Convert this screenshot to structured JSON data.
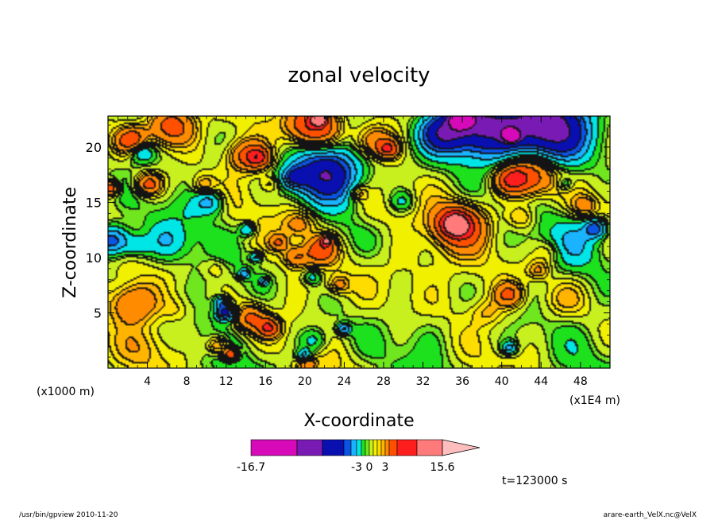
{
  "chart_data": {
    "type": "heatmap",
    "title": "zonal velocity",
    "xlabel": "X-coordinate",
    "ylabel": "Z-coordinate",
    "x_unit_label": "(x1E4 m)",
    "y_unit_label": "(x1000 m)",
    "x_ticks": [
      4,
      8,
      12,
      16,
      20,
      24,
      28,
      32,
      36,
      40,
      44,
      48
    ],
    "y_ticks": [
      5,
      10,
      15,
      20
    ],
    "xlim": [
      0,
      51
    ],
    "ylim": [
      0,
      22.8
    ],
    "colorbar": {
      "levels": [
        -16.7,
        -12,
        -9,
        -6,
        -4.5,
        -3,
        -1.5,
        -0.5,
        0,
        0.75,
        1.5,
        2.25,
        3,
        5,
        8,
        11,
        15.6
      ],
      "colors": [
        "#d60ab8",
        "#7a1ab4",
        "#0a10b0",
        "#0a55e6",
        "#19b3ff",
        "#00e6e6",
        "#1ee11e",
        "#6fe61e",
        "#c8f01e",
        "#f0f000",
        "#ffdc00",
        "#ffb400",
        "#ff8c00",
        "#ff5000",
        "#ff1e1e",
        "#ff7a7a",
        "#ffbebe"
      ],
      "tick_labels": [
        "-16.7",
        "-3",
        "0",
        "3",
        "15.6"
      ],
      "tick_values": [
        -16.7,
        -3,
        0,
        3,
        15.6
      ]
    },
    "field_sketch": {
      "background_value": 0.3,
      "features": [
        {
          "x": 2.5,
          "z": 20.5,
          "r": 1.5,
          "v": 7
        },
        {
          "x": 6.5,
          "z": 21.8,
          "r": 2.4,
          "v": 7
        },
        {
          "x": 3.4,
          "z": 19.6,
          "r": 1.3,
          "v": -5
        },
        {
          "x": 0.3,
          "z": 16.2,
          "r": 0.8,
          "v": 7
        },
        {
          "x": 4.2,
          "z": 16.6,
          "r": 1.3,
          "v": 6
        },
        {
          "x": 9.8,
          "z": 16.5,
          "r": 1.1,
          "v": 3
        },
        {
          "x": 10.4,
          "z": 15.0,
          "r": 1.5,
          "v": -4
        },
        {
          "x": 14.0,
          "z": 19.2,
          "r": 1.9,
          "v": 5
        },
        {
          "x": 15.3,
          "z": 19.0,
          "r": 1.2,
          "v": 7
        },
        {
          "x": 16.5,
          "z": 16.6,
          "r": 1.0,
          "v": 2
        },
        {
          "x": 21.0,
          "z": 22.0,
          "r": 2.5,
          "v": 9
        },
        {
          "x": 21.5,
          "z": 22.5,
          "r": 0.7,
          "v": 14
        },
        {
          "x": 22.2,
          "z": 17.6,
          "r": 3.2,
          "v": -9
        },
        {
          "x": 19.0,
          "z": 17.2,
          "r": 1.3,
          "v": -5
        },
        {
          "x": 27.0,
          "z": 20.5,
          "r": 2.0,
          "v": 5
        },
        {
          "x": 28.5,
          "z": 19.8,
          "r": 1.0,
          "v": 7
        },
        {
          "x": 34.0,
          "z": 21.3,
          "r": 2.5,
          "v": -8
        },
        {
          "x": 38.0,
          "z": 21.6,
          "r": 3.6,
          "v": -9
        },
        {
          "x": 45.0,
          "z": 21.8,
          "r": 4.2,
          "v": -11
        },
        {
          "x": 36.0,
          "z": 22.6,
          "r": 1.2,
          "v": -13
        },
        {
          "x": 41.0,
          "z": 21.0,
          "r": 0.8,
          "v": -13
        },
        {
          "x": 43.0,
          "z": 17.4,
          "r": 2.6,
          "v": 7
        },
        {
          "x": 41.0,
          "z": 17.0,
          "r": 1.6,
          "v": 7
        },
        {
          "x": 46.5,
          "z": 16.6,
          "r": 0.8,
          "v": -2.5
        },
        {
          "x": 36.0,
          "z": 12.8,
          "r": 2.6,
          "v": 6
        },
        {
          "x": 35.3,
          "z": 13.0,
          "r": 1.5,
          "v": 10
        },
        {
          "x": 42.0,
          "z": 13.6,
          "r": 1.5,
          "v": 3
        },
        {
          "x": 48.5,
          "z": 14.6,
          "r": 1.3,
          "v": 3
        },
        {
          "x": 49.6,
          "z": 12.6,
          "r": 1.2,
          "v": -6
        },
        {
          "x": 47.5,
          "z": 11.3,
          "r": 2.8,
          "v": -2.5
        },
        {
          "x": 45.0,
          "z": 10.5,
          "r": 1.5,
          "v": 2
        },
        {
          "x": 43.8,
          "z": 8.8,
          "r": 1.2,
          "v": 3
        },
        {
          "x": 46.5,
          "z": 6.2,
          "r": 2.2,
          "v": 2
        },
        {
          "x": 40.8,
          "z": 6.6,
          "r": 1.4,
          "v": 5
        },
        {
          "x": 38.5,
          "z": 5.0,
          "r": 1.6,
          "v": 2
        },
        {
          "x": 40.8,
          "z": 1.8,
          "r": 0.8,
          "v": -4
        },
        {
          "x": 33.0,
          "z": 3.5,
          "r": 2.5,
          "v": -0.5
        },
        {
          "x": 37.5,
          "z": 2.2,
          "r": 2.5,
          "v": -0.3
        },
        {
          "x": 0.5,
          "z": 11.5,
          "r": 1.9,
          "v": -7
        },
        {
          "x": 6.0,
          "z": 11.4,
          "r": 2.2,
          "v": -2.5
        },
        {
          "x": 3.0,
          "z": 11.0,
          "r": 1.4,
          "v": -2.5
        },
        {
          "x": 2.6,
          "z": 5.8,
          "r": 2.4,
          "v": 5
        },
        {
          "x": 7.0,
          "z": 5.2,
          "r": 1.6,
          "v": 1.5
        },
        {
          "x": 4.0,
          "z": 2.0,
          "r": 2.5,
          "v": 1.5
        },
        {
          "x": 11.0,
          "z": 9.0,
          "r": 1.2,
          "v": 1.5
        },
        {
          "x": 12.0,
          "z": 5.0,
          "r": 1.0,
          "v": -8
        },
        {
          "x": 11.5,
          "z": 6.0,
          "r": 0.7,
          "v": -4
        },
        {
          "x": 14.5,
          "z": 4.5,
          "r": 1.6,
          "v": 5
        },
        {
          "x": 16.4,
          "z": 3.6,
          "r": 1.1,
          "v": 7
        },
        {
          "x": 11.2,
          "z": 2.0,
          "r": 1.1,
          "v": 4
        },
        {
          "x": 12.5,
          "z": 1.2,
          "r": 0.7,
          "v": 9
        },
        {
          "x": 14.2,
          "z": 12.5,
          "r": 0.8,
          "v": -4
        },
        {
          "x": 15.1,
          "z": 10.0,
          "r": 0.6,
          "v": -4
        },
        {
          "x": 13.9,
          "z": 8.5,
          "r": 0.6,
          "v": -4
        },
        {
          "x": 15.9,
          "z": 7.8,
          "r": 0.5,
          "v": -4
        },
        {
          "x": 17.4,
          "z": 11.3,
          "r": 0.9,
          "v": 4
        },
        {
          "x": 19.2,
          "z": 10.0,
          "r": 1.2,
          "v": 4
        },
        {
          "x": 21.7,
          "z": 10.6,
          "r": 1.5,
          "v": 6
        },
        {
          "x": 22.3,
          "z": 11.5,
          "r": 0.6,
          "v": 10
        },
        {
          "x": 20.8,
          "z": 8.2,
          "r": 0.9,
          "v": -3
        },
        {
          "x": 19.5,
          "z": 13.0,
          "r": 1.6,
          "v": 3
        },
        {
          "x": 23.5,
          "z": 7.5,
          "r": 1.1,
          "v": 3
        },
        {
          "x": 24.0,
          "z": 3.5,
          "r": 0.7,
          "v": -5
        },
        {
          "x": 21.0,
          "z": 2.4,
          "r": 1.5,
          "v": -3
        },
        {
          "x": 20.0,
          "z": 1.0,
          "r": 0.8,
          "v": -6
        },
        {
          "x": 20.2,
          "z": 0.5,
          "r": 0.9,
          "v": 5
        },
        {
          "x": 30.0,
          "z": 9.0,
          "r": 5.5,
          "v": 1.3
        },
        {
          "x": 27.0,
          "z": 14.0,
          "r": 2.3,
          "v": 1.3
        },
        {
          "x": 30.0,
          "z": 15.0,
          "r": 1.3,
          "v": -2.5
        },
        {
          "x": 25.5,
          "z": 15.8,
          "r": 0.9,
          "v": 3
        },
        {
          "x": 8.5,
          "z": 14.0,
          "r": 1.2,
          "v": -0.5
        }
      ]
    }
  },
  "footer": {
    "time_label": "t=123000 s",
    "program_label": "/usr/bin/gpview  2010-11-20",
    "file_label": "arare-earth_VelX.nc@VelX"
  }
}
